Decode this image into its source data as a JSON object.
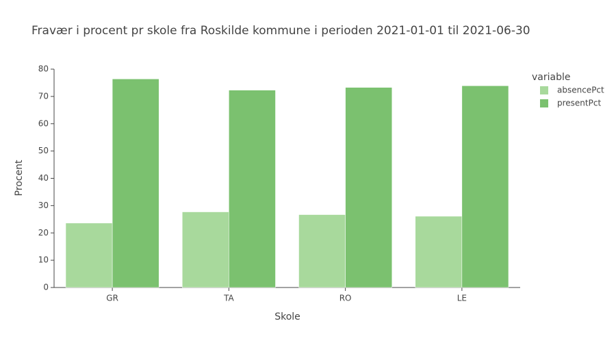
{
  "chart_data": {
    "type": "bar",
    "title": "Fravær i procent pr skole fra Roskilde kommune i perioden 2021-01-01 til 2021-06-30",
    "x_label": "Skole",
    "y_label": "Procent",
    "legend_title": "variable",
    "categories": [
      "GR",
      "TA",
      "RO",
      "LE"
    ],
    "series": [
      {
        "name": "absencePct",
        "color": "#a8d99c",
        "values": [
          23.6,
          27.7,
          26.7,
          26.1
        ]
      },
      {
        "name": "presentPct",
        "color": "#7bc16f",
        "values": [
          76.4,
          72.3,
          73.3,
          73.9
        ]
      }
    ],
    "ylim": [
      0,
      80
    ],
    "yticks": [
      0,
      10,
      20,
      30,
      40,
      50,
      60,
      70,
      80
    ],
    "grid": false,
    "legend_position": "right"
  }
}
